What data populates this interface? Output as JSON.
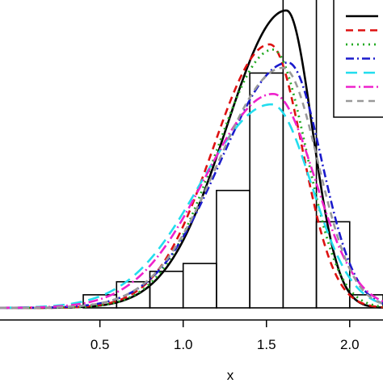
{
  "chart_data": {
    "type": "histogram-density",
    "xlabel": "x",
    "xlim": [
      -0.1,
      2.2
    ],
    "ylim": [
      0,
      1.18
    ],
    "x_ticks": [
      0.5,
      1.0,
      1.5,
      2.0
    ],
    "x_tick_labels": [
      "0.5",
      "1.0",
      "1.5",
      "2.0"
    ],
    "legend_placement": "top-right",
    "bins": [
      {
        "start": 0.4,
        "end": 0.6,
        "density": 0.05
      },
      {
        "start": 0.6,
        "end": 0.8,
        "density": 0.1
      },
      {
        "start": 0.8,
        "end": 1.0,
        "density": 0.14
      },
      {
        "start": 1.0,
        "end": 1.2,
        "density": 0.17
      },
      {
        "start": 1.2,
        "end": 1.4,
        "density": 0.45
      },
      {
        "start": 1.4,
        "end": 1.6,
        "density": 0.9
      },
      {
        "start": 1.6,
        "end": 1.8,
        "density": 1.23
      },
      {
        "start": 1.8,
        "end": 2.0,
        "density": 0.33
      },
      {
        "start": 2.0,
        "end": 2.2,
        "density": 0.05
      }
    ],
    "series": [
      {
        "color": "#000000",
        "dash": "",
        "width": 2.6,
        "mode": 1.62,
        "peak": 1.14,
        "sl": 0.36,
        "sr": 0.155
      },
      {
        "color": "#dd1111",
        "dash": "9 6",
        "width": 2.6,
        "mode": 1.52,
        "peak": 1.01,
        "sl": 0.34,
        "sr": 0.195
      },
      {
        "color": "#22aa22",
        "dash": "2 5",
        "width": 2.8,
        "mode": 1.54,
        "peak": 0.99,
        "sl": 0.34,
        "sr": 0.2
      },
      {
        "color": "#1a1acc",
        "dash": "10 4 2 4",
        "width": 2.6,
        "mode": 1.63,
        "peak": 0.94,
        "sl": 0.4,
        "sr": 0.2
      },
      {
        "color": "#22ddee",
        "dash": "14 8",
        "width": 2.6,
        "mode": 1.53,
        "peak": 0.78,
        "sl": 0.43,
        "sr": 0.24
      },
      {
        "color": "#ee22cc",
        "dash": "12 4 2 4",
        "width": 2.6,
        "mode": 1.54,
        "peak": 0.82,
        "sl": 0.41,
        "sr": 0.25
      },
      {
        "color": "#999999",
        "dash": "8 6",
        "width": 2.6,
        "mode": 1.6,
        "peak": 0.92,
        "sl": 0.39,
        "sr": 0.21
      }
    ]
  }
}
